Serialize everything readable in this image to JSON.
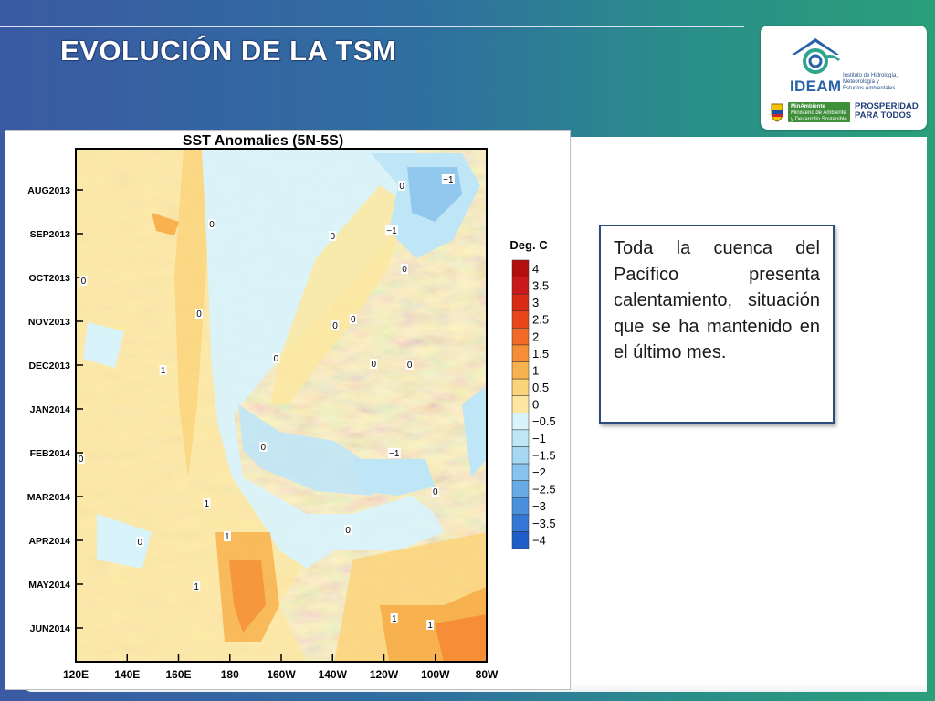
{
  "slide": {
    "title": "EVOLUCIÓN DE LA TSM",
    "description": "Toda la cuenca del Pacífico presenta calentamiento, situación que se ha mantenido en el último mes."
  },
  "logo": {
    "name": "IDEAM",
    "institute_lines": [
      "Instituto de Hidrología,",
      "Meteorología y",
      "Estudios Ambientales"
    ],
    "ministry_lines": [
      "MinAmbiente",
      "Ministerio de Ambiente",
      "y Desarrollo Sostenible"
    ],
    "slogan_lines": [
      "PROSPERIDAD",
      "PARA TODOS"
    ],
    "icons": [
      "ideam-condor-icon",
      "colombia-shield-icon"
    ]
  },
  "colors": {
    "warm_0_0.5": "#fff3c4",
    "warm_0.5_1": "#fde7a0",
    "warm_1_1.5": "#f8cf6e",
    "warm_1.5_2": "#f2aa42",
    "cool_0_-0.5": "#d9f3fb",
    "cool_-0.5_-1": "#bfe6f7",
    "cool_-1_-1.5": "#92c8ee"
  },
  "chart_data": {
    "type": "heatmap",
    "title": "SST Anomalies (5N-5S)",
    "xlabel": "",
    "ylabel": "",
    "x_ticks": [
      "120E",
      "140E",
      "160E",
      "180",
      "160W",
      "140W",
      "120W",
      "100W",
      "80W"
    ],
    "y_ticks": [
      "AUG2013",
      "SEP2013",
      "OCT2013",
      "NOV2013",
      "DEC2013",
      "JAN2014",
      "FEB2014",
      "MAR2014",
      "APR2014",
      "MAY2014",
      "JUN2014"
    ],
    "colorbar": {
      "title": "Deg. C",
      "labels": [
        "4",
        "3.5",
        "3",
        "2.5",
        "2",
        "1.5",
        "1",
        "0.5",
        "0",
        "−0.5",
        "−1",
        "−1.5",
        "−2",
        "−2.5",
        "−3",
        "−3.5",
        "−4"
      ],
      "colors": [
        "#b30f0f",
        "#c81a1a",
        "#d82b14",
        "#e8451a",
        "#f06a28",
        "#f58e36",
        "#f7b14e",
        "#fbd37a",
        "#fde7a0",
        "#d9f3fb",
        "#bfe6f7",
        "#a6d8f3",
        "#86c3ee",
        "#66aae6",
        "#4a90dd",
        "#3477d4",
        "#1f5ec8"
      ]
    },
    "contour_labels": [
      {
        "text": "−1",
        "lon": -95,
        "month": "AUG2013"
      },
      {
        "text": "0",
        "lon": -113,
        "month": "AUG2013"
      },
      {
        "text": "0",
        "lon": -140,
        "month": "SEP2013"
      },
      {
        "text": "0",
        "lon": 173,
        "month": "SEP2013"
      },
      {
        "text": "−1",
        "lon": -117,
        "month": "SEP2013"
      },
      {
        "text": "0",
        "lon": 123,
        "month": "OCT2013"
      },
      {
        "text": "0",
        "lon": -112,
        "month": "OCT2013"
      },
      {
        "text": "0",
        "lon": -132,
        "month": "NOV2013"
      },
      {
        "text": "0",
        "lon": -139,
        "month": "NOV2013"
      },
      {
        "text": "0",
        "lon": 168,
        "month": "NOV2013"
      },
      {
        "text": "0",
        "lon": -124,
        "month": "DEC2013"
      },
      {
        "text": "1",
        "lon": 154,
        "month": "DEC2013"
      },
      {
        "text": "0",
        "lon": -162,
        "month": "DEC2013"
      },
      {
        "text": "0",
        "lon": -110,
        "month": "DEC2013"
      },
      {
        "text": "0",
        "lon": 122,
        "month": "FEB2014"
      },
      {
        "text": "0",
        "lon": -167,
        "month": "FEB2014"
      },
      {
        "text": "−1",
        "lon": -116,
        "month": "FEB2014"
      },
      {
        "text": "1",
        "lon": 171,
        "month": "MAR2014"
      },
      {
        "text": "0",
        "lon": -100,
        "month": "MAR2014"
      },
      {
        "text": "0",
        "lon": 145,
        "month": "APR2014"
      },
      {
        "text": "0",
        "lon": -134,
        "month": "APR2014"
      },
      {
        "text": "1",
        "lon": 179,
        "month": "APR2014"
      },
      {
        "text": "1",
        "lon": 167,
        "month": "MAY2014"
      },
      {
        "text": "1",
        "lon": -116,
        "month": "JUN2014"
      },
      {
        "text": "1",
        "lon": -102,
        "month": "JUN2014"
      }
    ]
  }
}
